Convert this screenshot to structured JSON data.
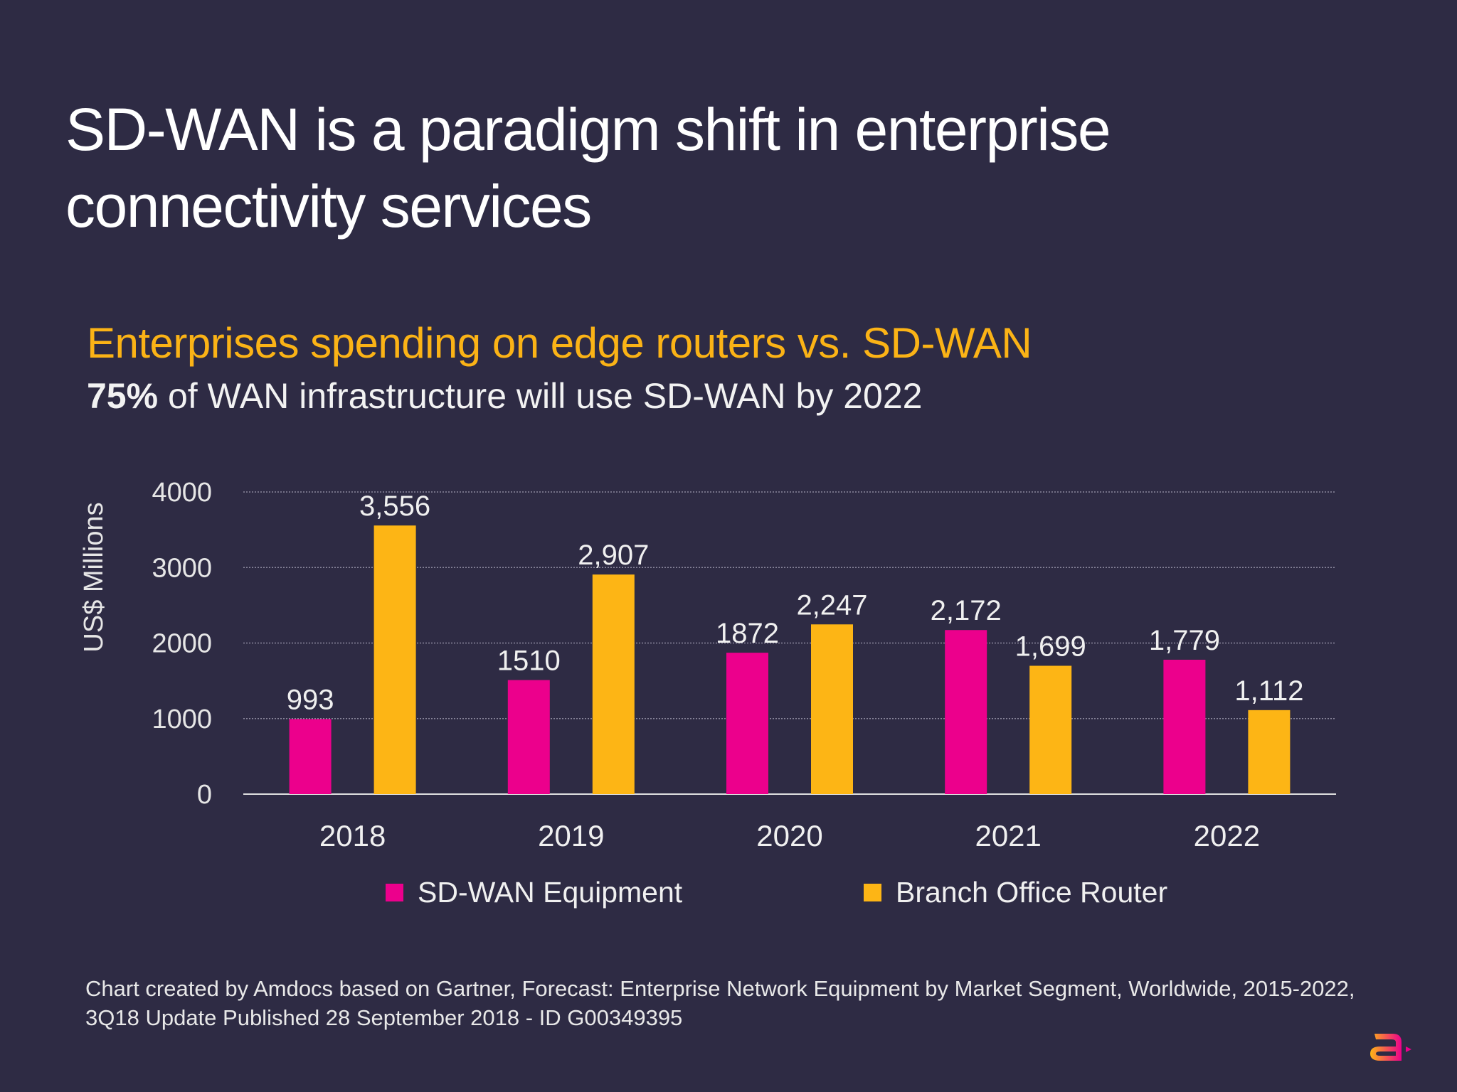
{
  "title": "SD-WAN is a paradigm shift in enterprise connectivity services",
  "title_lines": [
    "SD-WAN is a paradigm shift in enterprise",
    "connectivity services"
  ],
  "subtitle": "Enterprises spending on edge routers vs. SD-WAN",
  "lead": {
    "bold": "75%",
    "text": " of WAN infrastructure will use SD-WAN by 2022"
  },
  "chart_data": {
    "type": "bar",
    "ylabel": "US$ Millions",
    "xlabel": "",
    "ylim": [
      0,
      4000
    ],
    "yticks": [
      0,
      1000,
      2000,
      3000,
      4000
    ],
    "grid": true,
    "legend_position": "bottom",
    "categories": [
      "2018",
      "2019",
      "2020",
      "2021",
      "2022"
    ],
    "series": [
      {
        "name": "SD-WAN Equipment",
        "color": "#ec008c",
        "values": [
          993,
          1510,
          1872,
          2172,
          1779
        ],
        "labels": [
          "993",
          "1510",
          "1872",
          "2,172",
          "1,779"
        ]
      },
      {
        "name": "Branch Office Router",
        "color": "#fdb515",
        "values": [
          3556,
          2907,
          2247,
          1699,
          1112
        ],
        "labels": [
          "3,556",
          "2,907",
          "2,247",
          "1,699",
          "1,112"
        ]
      }
    ]
  },
  "legend": {
    "items": [
      "SD-WAN Equipment",
      "Branch Office Router"
    ]
  },
  "footer": [
    "Chart created by Amdocs based on Gartner, Forecast: Enterprise Network Equipment by Market Segment, Worldwide, 2015-2022,",
    "3Q18 Update Published 28 September 2018 - ID G00349395"
  ],
  "logo": {
    "text": "amdocs",
    "icon": "amdocs-a-logo"
  },
  "colors": {
    "background": "#2e2b44",
    "pink": "#ec008c",
    "yellow": "#fdb515"
  }
}
